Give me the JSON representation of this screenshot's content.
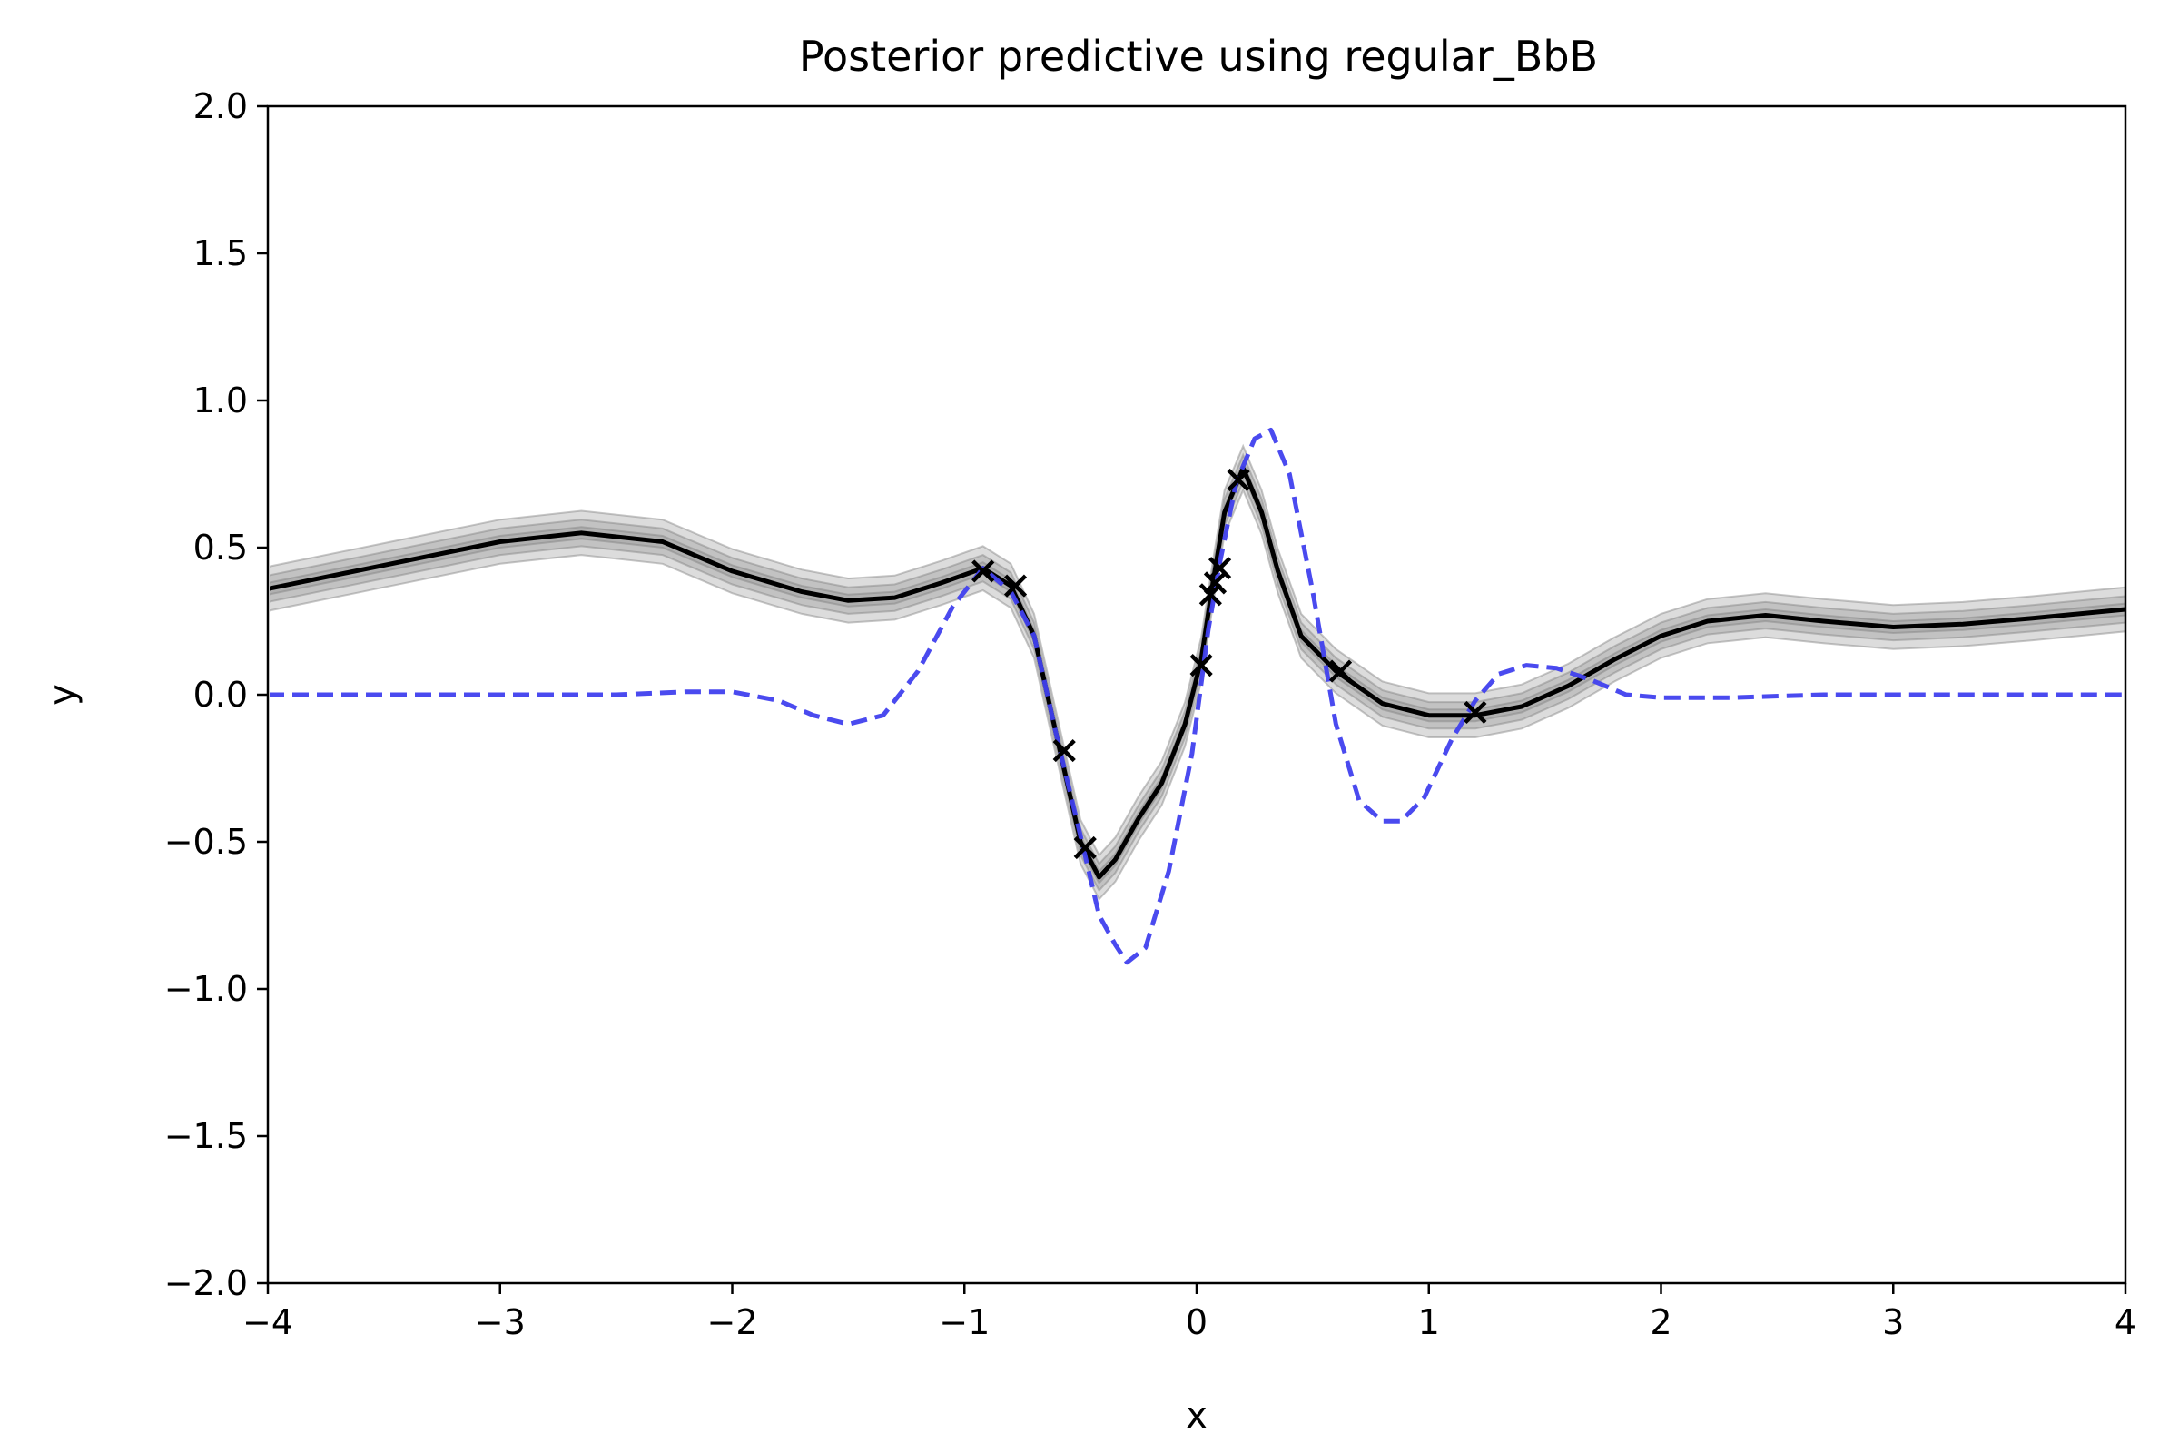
{
  "chart_data": {
    "type": "line",
    "title": "Posterior predictive using regular_BbB",
    "xlabel": "x",
    "ylabel": "y",
    "xlim": [
      -4,
      4
    ],
    "ylim": [
      -2,
      2
    ],
    "x_ticks": [
      -4,
      -3,
      -2,
      -1,
      0,
      1,
      2,
      3,
      4
    ],
    "x_tick_labels": [
      "−4",
      "−3",
      "−2",
      "−1",
      "0",
      "1",
      "2",
      "3",
      "4"
    ],
    "y_ticks": [
      -2.0,
      -1.5,
      -1.0,
      -0.5,
      0.0,
      0.5,
      1.0,
      1.5,
      2.0
    ],
    "y_tick_labels": [
      "−2.0",
      "−1.5",
      "−1.0",
      "−0.5",
      "0.0",
      "0.5",
      "1.0",
      "1.5",
      "2.0"
    ],
    "grid": false,
    "colors": {
      "mean": "#000000",
      "band": "#808080",
      "truth": "#4040ee",
      "observations": "#000000"
    },
    "series": [
      {
        "style": "mean-with-uncertainty-bands",
        "x": [
          -4.0,
          -3.5,
          -3.0,
          -2.65,
          -2.3,
          -2.0,
          -1.7,
          -1.5,
          -1.3,
          -1.1,
          -0.92,
          -0.8,
          -0.7,
          -0.6,
          -0.5,
          -0.42,
          -0.35,
          -0.25,
          -0.15,
          -0.05,
          0.02,
          0.07,
          0.12,
          0.2,
          0.28,
          0.35,
          0.45,
          0.6,
          0.8,
          1.0,
          1.2,
          1.4,
          1.6,
          1.8,
          2.0,
          2.2,
          2.45,
          2.7,
          3.0,
          3.3,
          3.6,
          4.0
        ],
        "y": [
          0.36,
          0.44,
          0.52,
          0.55,
          0.52,
          0.42,
          0.35,
          0.32,
          0.33,
          0.38,
          0.43,
          0.37,
          0.2,
          -0.15,
          -0.5,
          -0.62,
          -0.56,
          -0.42,
          -0.3,
          -0.1,
          0.12,
          0.38,
          0.62,
          0.77,
          0.62,
          0.42,
          0.2,
          0.08,
          -0.03,
          -0.07,
          -0.07,
          -0.04,
          0.03,
          0.12,
          0.2,
          0.25,
          0.27,
          0.25,
          0.23,
          0.24,
          0.26,
          0.29
        ],
        "bands": [
          0.02,
          0.045,
          0.075
        ]
      },
      {
        "style": "dashed",
        "x": [
          -4.0,
          -3.0,
          -2.5,
          -2.2,
          -2.0,
          -1.8,
          -1.65,
          -1.5,
          -1.35,
          -1.2,
          -1.05,
          -0.92,
          -0.8,
          -0.7,
          -0.6,
          -0.5,
          -0.42,
          -0.35,
          -0.3,
          -0.22,
          -0.12,
          -0.02,
          0.05,
          0.1,
          0.17,
          0.25,
          0.32,
          0.4,
          0.5,
          0.6,
          0.7,
          0.8,
          0.88,
          0.98,
          1.1,
          1.2,
          1.3,
          1.42,
          1.55,
          1.7,
          1.85,
          2.0,
          2.3,
          2.7,
          3.0,
          4.0
        ],
        "y": [
          0.0,
          0.0,
          0.0,
          0.01,
          0.01,
          -0.02,
          -0.07,
          -0.1,
          -0.07,
          0.08,
          0.3,
          0.43,
          0.35,
          0.2,
          -0.15,
          -0.48,
          -0.75,
          -0.85,
          -0.91,
          -0.86,
          -0.6,
          -0.2,
          0.22,
          0.45,
          0.72,
          0.87,
          0.9,
          0.75,
          0.35,
          -0.1,
          -0.36,
          -0.43,
          -0.43,
          -0.35,
          -0.15,
          -0.02,
          0.07,
          0.1,
          0.09,
          0.05,
          0.0,
          -0.01,
          -0.01,
          0.0,
          0.0,
          0.0
        ]
      },
      {
        "style": "markers-x",
        "x": [
          -0.92,
          -0.78,
          -0.57,
          -0.48,
          0.02,
          0.06,
          0.08,
          0.1,
          0.18,
          0.62,
          1.2
        ],
        "y": [
          0.42,
          0.37,
          -0.19,
          -0.52,
          0.1,
          0.34,
          0.38,
          0.43,
          0.73,
          0.08,
          -0.06
        ]
      }
    ]
  }
}
